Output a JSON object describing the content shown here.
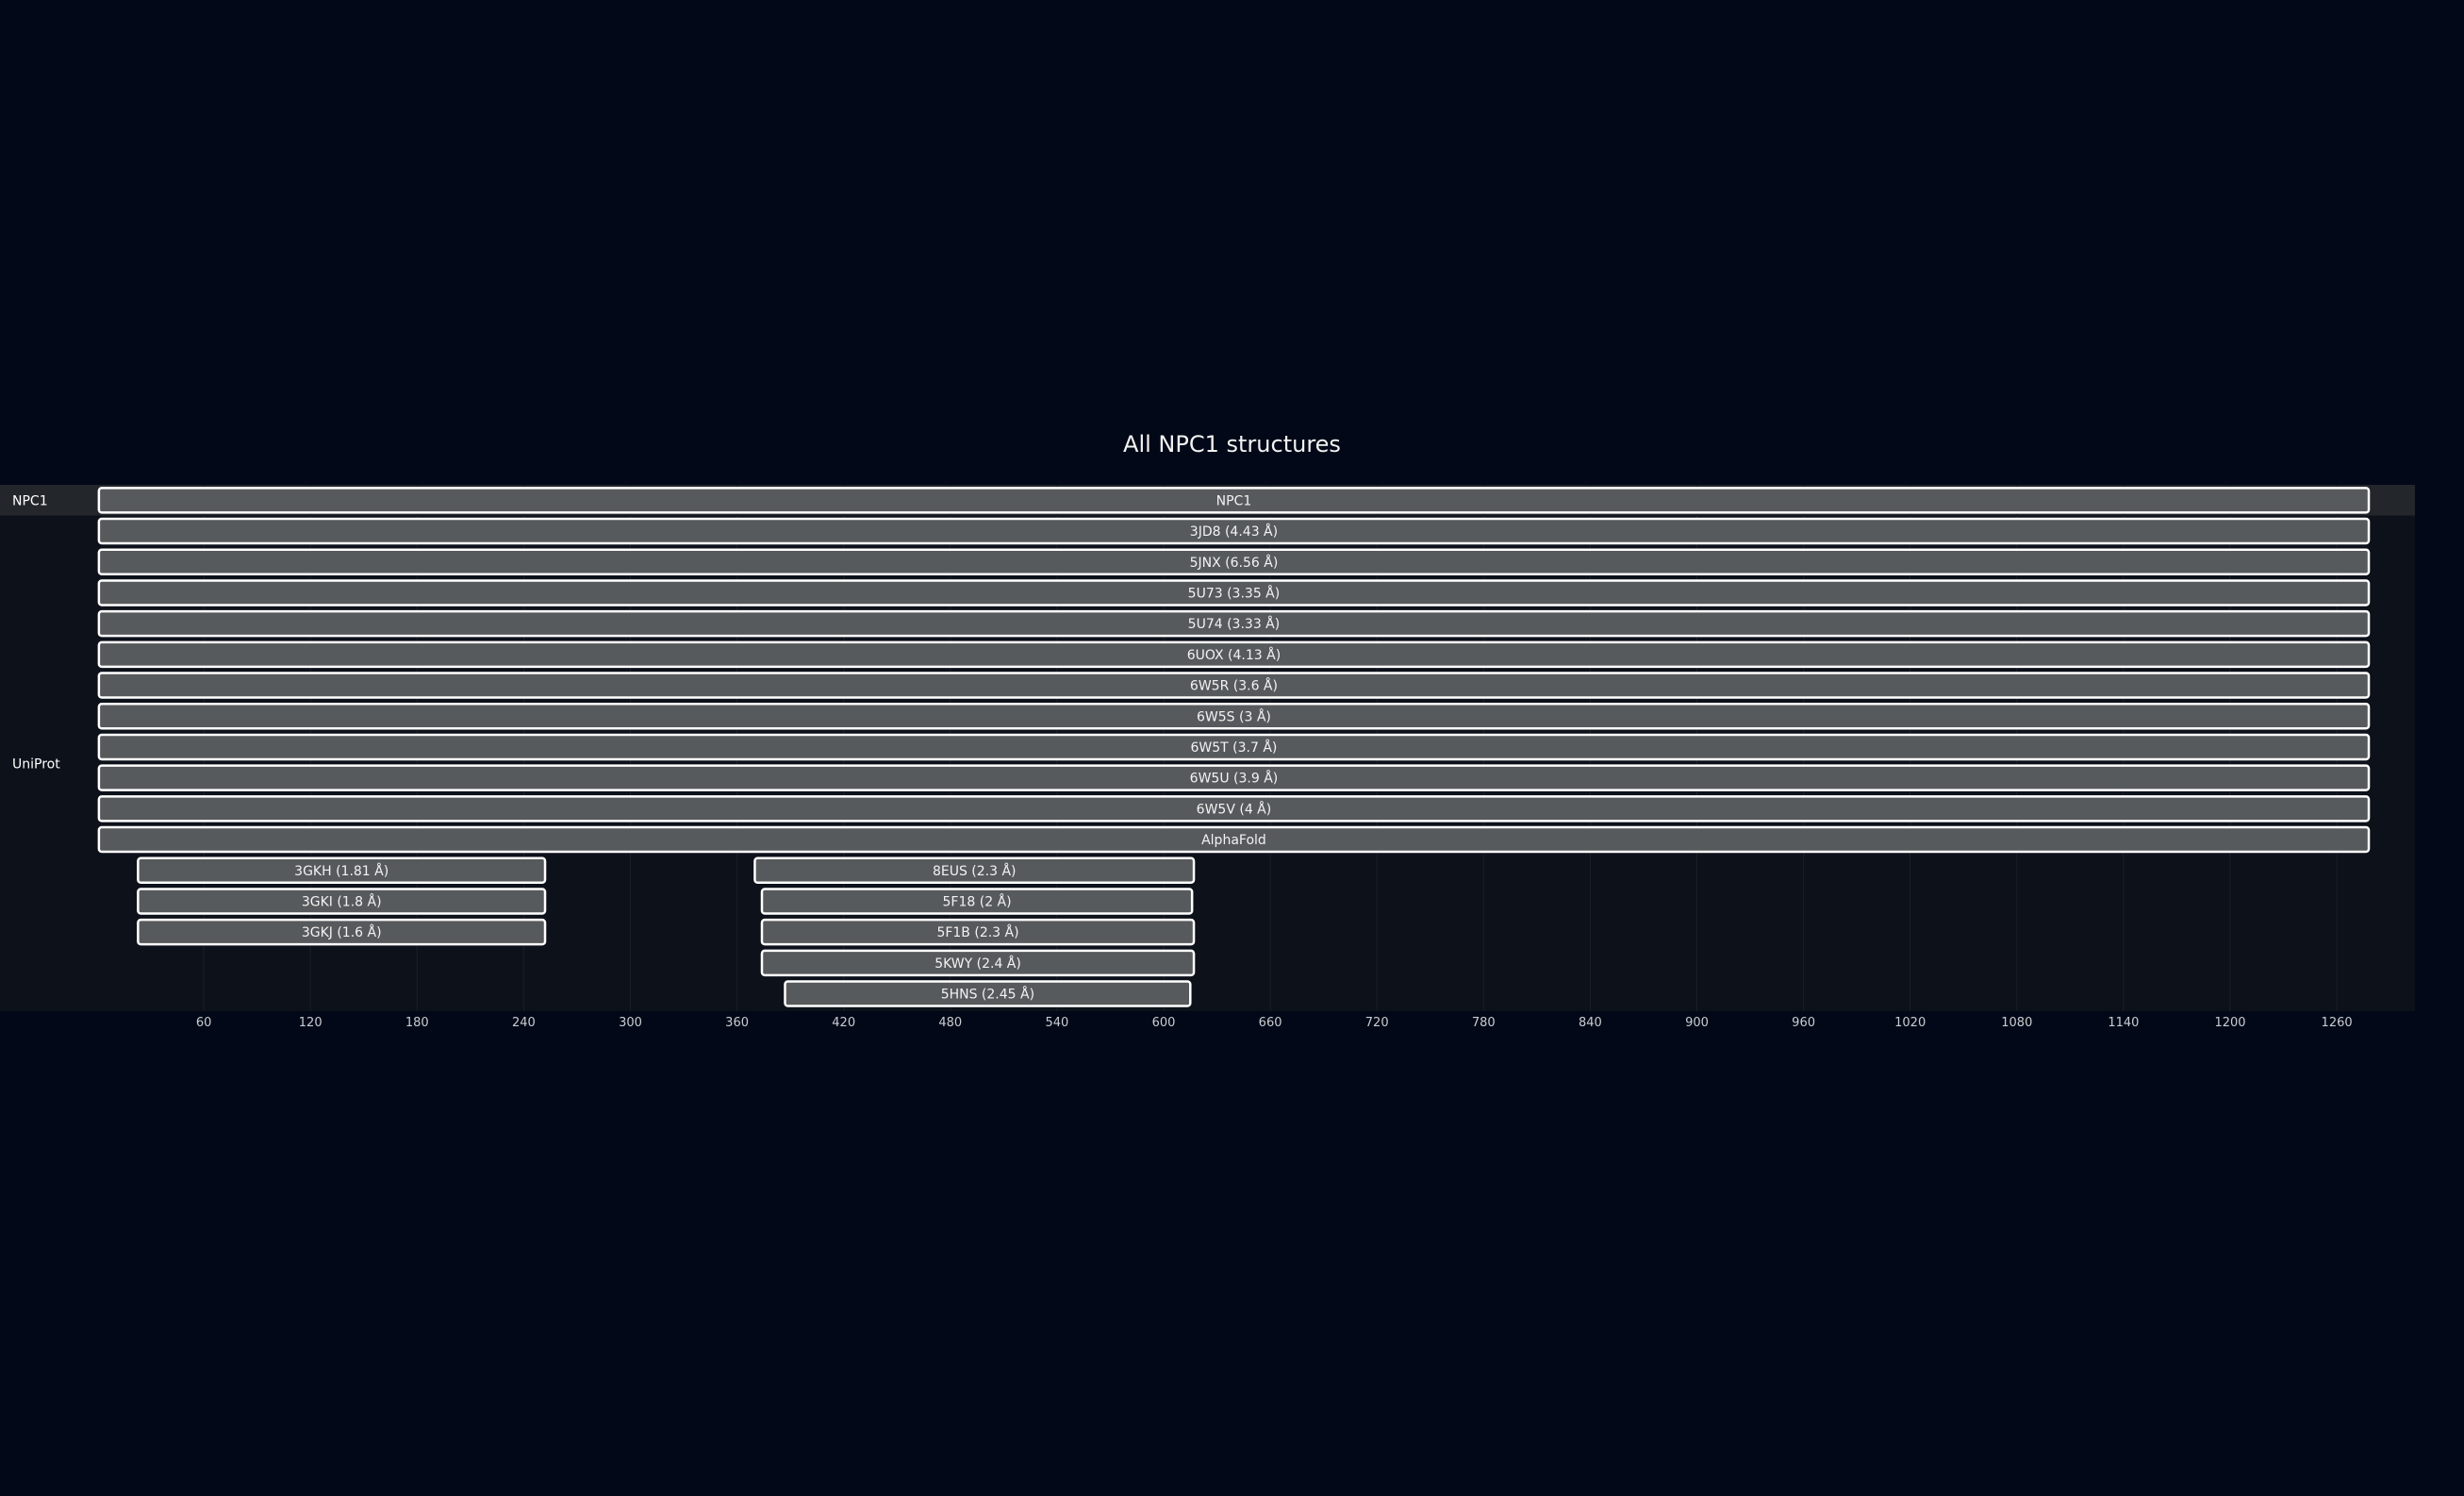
{
  "chart_data": {
    "type": "bar",
    "title": "All NPC1 structures",
    "groups": [
      "NPC1",
      "UniProt"
    ],
    "xlim": [
      0,
      1305
    ],
    "x_ticks": [
      60,
      120,
      180,
      240,
      300,
      360,
      420,
      480,
      540,
      600,
      660,
      720,
      780,
      840,
      900,
      960,
      1020,
      1080,
      1140,
      1200,
      1260
    ],
    "grid": true,
    "legend": "none",
    "bars": [
      {
        "label": "NPC1",
        "group": "NPC1",
        "row": 0,
        "start": 1,
        "end": 1278
      },
      {
        "label": "3JD8 (4.43 Å)",
        "group": "UniProt",
        "row": 1,
        "start": 1,
        "end": 1278
      },
      {
        "label": "5JNX (6.56 Å)",
        "group": "UniProt",
        "row": 2,
        "start": 1,
        "end": 1278
      },
      {
        "label": "5U73 (3.35 Å)",
        "group": "UniProt",
        "row": 3,
        "start": 1,
        "end": 1278
      },
      {
        "label": "5U74 (3.33 Å)",
        "group": "UniProt",
        "row": 4,
        "start": 1,
        "end": 1278
      },
      {
        "label": "6UOX (4.13 Å)",
        "group": "UniProt",
        "row": 5,
        "start": 1,
        "end": 1278
      },
      {
        "label": "6W5R (3.6 Å)",
        "group": "UniProt",
        "row": 6,
        "start": 1,
        "end": 1278
      },
      {
        "label": "6W5S (3 Å)",
        "group": "UniProt",
        "row": 7,
        "start": 1,
        "end": 1278
      },
      {
        "label": "6W5T (3.7 Å)",
        "group": "UniProt",
        "row": 8,
        "start": 1,
        "end": 1278
      },
      {
        "label": "6W5U (3.9 Å)",
        "group": "UniProt",
        "row": 9,
        "start": 1,
        "end": 1278
      },
      {
        "label": "6W5V (4 Å)",
        "group": "UniProt",
        "row": 10,
        "start": 1,
        "end": 1278
      },
      {
        "label": "AlphaFold",
        "group": "UniProt",
        "row": 11,
        "start": 1,
        "end": 1278
      },
      {
        "label": "3GKH (1.81 Å)",
        "group": "UniProt",
        "row": 12,
        "start": 23,
        "end": 252
      },
      {
        "label": "8EUS (2.3 Å)",
        "group": "UniProt",
        "row": 12,
        "start": 370,
        "end": 617
      },
      {
        "label": "3GKI (1.8 Å)",
        "group": "UniProt",
        "row": 13,
        "start": 23,
        "end": 252
      },
      {
        "label": "5F18 (2 Å)",
        "group": "UniProt",
        "row": 13,
        "start": 374,
        "end": 616
      },
      {
        "label": "3GKJ (1.6 Å)",
        "group": "UniProt",
        "row": 14,
        "start": 23,
        "end": 252
      },
      {
        "label": "5F1B (2.3 Å)",
        "group": "UniProt",
        "row": 14,
        "start": 374,
        "end": 617
      },
      {
        "label": "5KWY (2.4 Å)",
        "group": "UniProt",
        "row": 15,
        "start": 374,
        "end": 617
      },
      {
        "label": "5HNS (2.45 Å)",
        "group": "UniProt",
        "row": 16,
        "start": 387,
        "end": 615
      }
    ]
  }
}
